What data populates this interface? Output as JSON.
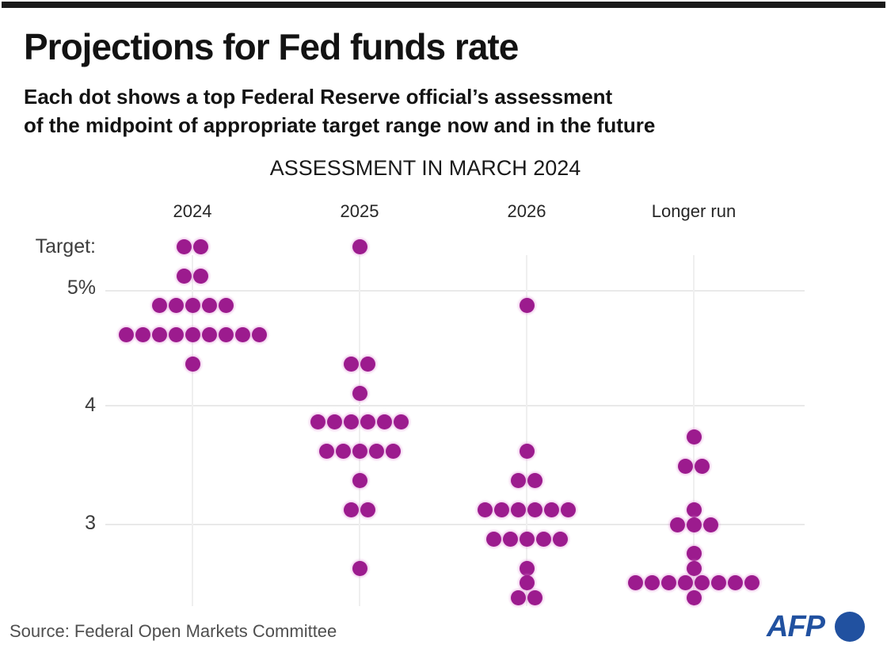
{
  "page": {
    "title": "Projections for Fed funds rate",
    "subtitle_line1": "Each dot shows a top Federal Reserve official’s assessment",
    "subtitle_line2": "of the midpoint of appropriate target range now and in the future",
    "source": "Source: Federal Open Markets Committee",
    "logo_text": "AFP"
  },
  "colors": {
    "top_bar": "#1a1a1a",
    "dot": "#9c1b8e",
    "afp_blue": "#2151a0",
    "gridline": "#e9e9e9"
  },
  "chart_data": {
    "type": "scatter",
    "subtype": "dot-plot",
    "title": "ASSESSMENT IN MARCH 2024",
    "categories": [
      "2024",
      "2025",
      "2026",
      "Longer run"
    ],
    "y_axis_labels": [
      {
        "text": "Target:",
        "value": 5.375
      },
      {
        "text": "5%",
        "value": 5
      },
      {
        "text": "4",
        "value": 4
      },
      {
        "text": "3",
        "value": 3
      }
    ],
    "y_gridlines": [
      5,
      4,
      3
    ],
    "ylim": [
      2.25,
      5.5
    ],
    "unit": "percent (midpoint of target range)",
    "legend_position": "none",
    "grid": "light horizontal lines at 5, 4, 3 and faint vertical line per column",
    "dot_color": "#9c1b8e",
    "series": [
      {
        "name": "2024",
        "points": [
          {
            "value": 5.375,
            "count": 2
          },
          {
            "value": 5.125,
            "count": 2
          },
          {
            "value": 4.875,
            "count": 5
          },
          {
            "value": 4.625,
            "count": 9
          },
          {
            "value": 4.375,
            "count": 1
          }
        ]
      },
      {
        "name": "2025",
        "points": [
          {
            "value": 5.375,
            "count": 1
          },
          {
            "value": 4.375,
            "count": 2
          },
          {
            "value": 4.125,
            "count": 1
          },
          {
            "value": 3.875,
            "count": 6
          },
          {
            "value": 3.625,
            "count": 5
          },
          {
            "value": 3.375,
            "count": 1
          },
          {
            "value": 3.125,
            "count": 2
          },
          {
            "value": 2.625,
            "count": 1
          }
        ]
      },
      {
        "name": "2026",
        "points": [
          {
            "value": 4.875,
            "count": 1
          },
          {
            "value": 3.625,
            "count": 1
          },
          {
            "value": 3.375,
            "count": 2
          },
          {
            "value": 3.125,
            "count": 6
          },
          {
            "value": 2.875,
            "count": 5
          },
          {
            "value": 2.625,
            "count": 1
          },
          {
            "value": 2.5,
            "count": 1
          },
          {
            "value": 2.375,
            "count": 2
          }
        ]
      },
      {
        "name": "Longer run",
        "points": [
          {
            "value": 3.75,
            "count": 1
          },
          {
            "value": 3.5,
            "count": 2
          },
          {
            "value": 3.125,
            "count": 1
          },
          {
            "value": 3.0,
            "count": 3
          },
          {
            "value": 2.75,
            "count": 1
          },
          {
            "value": 2.625,
            "count": 1
          },
          {
            "value": 2.5,
            "count": 8
          },
          {
            "value": 2.375,
            "count": 1
          }
        ]
      }
    ]
  }
}
